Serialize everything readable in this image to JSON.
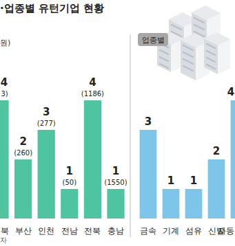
{
  "chart_data": [
    {
      "type": "bar",
      "title": "·업종별 유턴기업 현황",
      "subtitle": "원)",
      "annotations": [
        "자"
      ],
      "categories": [
        "북",
        "부산",
        "인천",
        "전남",
        "전북",
        "충남"
      ],
      "values": [
        4,
        2,
        3,
        1,
        4,
        1
      ],
      "amount_labels": [
        "3)",
        "(260)",
        "(277)",
        "(50)",
        "(1186)",
        "(1550)"
      ],
      "color": "#4fc4a0",
      "ylim": [
        0,
        5
      ],
      "data_labels": true,
      "tick_labels": "x",
      "grid": false
    },
    {
      "type": "bar",
      "subtitle": "업종별",
      "categories": [
        "금속",
        "기계",
        "섬유",
        "신발",
        "자동"
      ],
      "values": [
        3,
        1,
        1,
        2,
        4
      ],
      "color": "#7dc6ea",
      "ylim": [
        0,
        5
      ],
      "data_labels": true,
      "tick_labels": "x",
      "grid": false
    }
  ]
}
